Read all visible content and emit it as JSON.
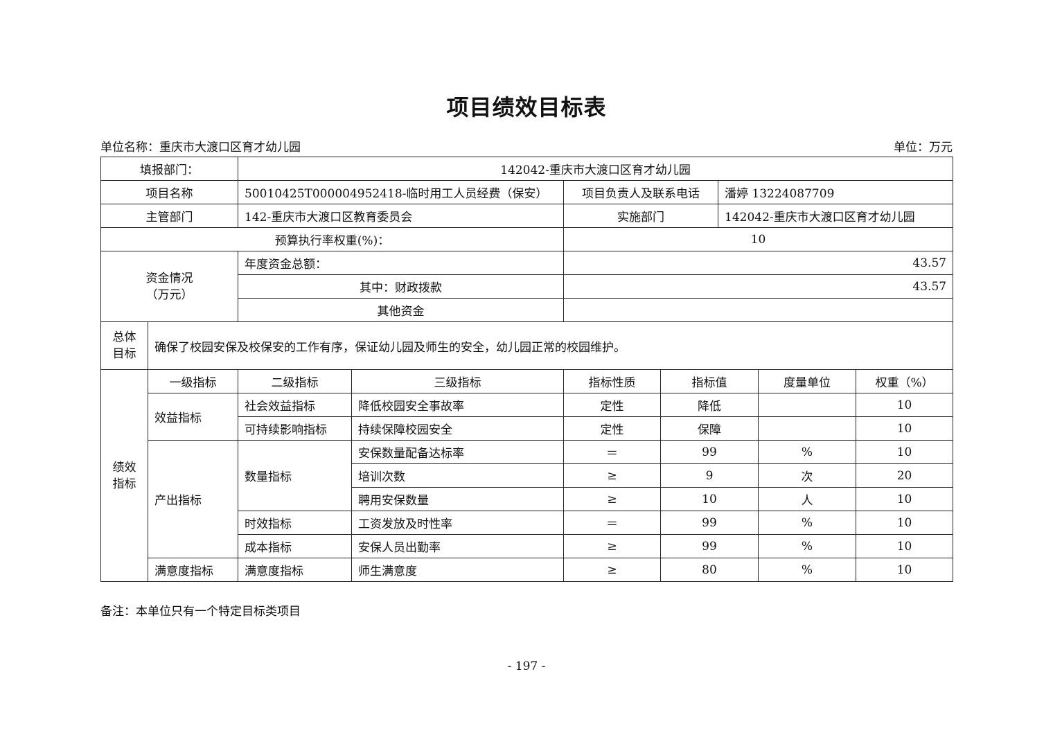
{
  "title": "项目绩效目标表",
  "unit_name": "单位名称：重庆市大渡口区育才幼儿园",
  "unit": "单位：万元",
  "info": {
    "fill_dept_label": "填报部门：",
    "fill_dept": "142042-重庆市大渡口区育才幼儿园",
    "project_name_label": "项目名称",
    "project_name": "50010425T000004952418-临时用工人员经费（保安）",
    "contact_label": "项目负责人及联系电话",
    "contact": "潘婷 13224087709",
    "supervisor_label": "主管部门",
    "supervisor": "142-重庆市大渡口区教育委员会",
    "impl_label": "实施部门",
    "impl": "142042-重庆市大渡口区育才幼儿园",
    "budget_weight_label": "预算执行率权重(%)：",
    "budget_weight": "10",
    "funds_label": "资金情况",
    "funds_unit": "（万元）",
    "annual_total_label": "年度资金总额：",
    "annual_total": "43.57",
    "fiscal_label": "其中：财政拨款",
    "fiscal": "43.57",
    "other_label": "其他资金",
    "other": "",
    "goal_label_1": "总体",
    "goal_label_2": "目标",
    "goal": "确保了校园安保及校保安的工作有序，保证幼儿园及师生的安全，幼儿园正常的校园维护。"
  },
  "perf": {
    "label_1": "绩效",
    "label_2": "指标",
    "headers": [
      "一级指标",
      "二级指标",
      "三级指标",
      "指标性质",
      "指标值",
      "度量单位",
      "权重（%）"
    ],
    "level1": [
      "效益指标",
      "产出指标",
      "满意度指标"
    ],
    "level2": [
      "社会效益指标",
      "可持续影响指标",
      "数量指标",
      "时效指标",
      "成本指标",
      "满意度指标"
    ],
    "rows": [
      [
        "降低校园安全事故率",
        "定性",
        "降低",
        "",
        "10"
      ],
      [
        "持续保障校园安全",
        "定性",
        "保障",
        "",
        "10"
      ],
      [
        "安保数量配备达标率",
        "＝",
        "99",
        "%",
        "10"
      ],
      [
        "培训次数",
        "≥",
        "9",
        "次",
        "20"
      ],
      [
        "聘用安保数量",
        "≥",
        "10",
        "人",
        "10"
      ],
      [
        "工资发放及时性率",
        "＝",
        "99",
        "%",
        "10"
      ],
      [
        "安保人员出勤率",
        "≥",
        "99",
        "%",
        "10"
      ],
      [
        "师生满意度",
        "≥",
        "80",
        "%",
        "10"
      ]
    ]
  },
  "note": "备注：本单位只有一个特定目标类项目",
  "page_number": "- 197 -"
}
